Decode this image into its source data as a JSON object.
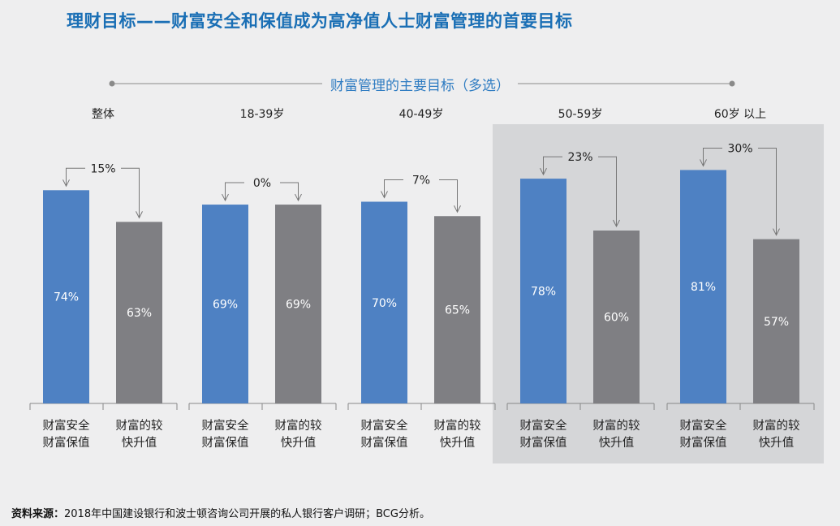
{
  "title": "理财目标——财富安全和保值成为高净值人士财富管理的首要目标",
  "source_label": "资料来源：",
  "source_text": "2018年中国建设银行和波士顿咨询公司开展的私人银行客户调研；BCG分析。",
  "colors": {
    "safe": "#4e81c3",
    "growth": "#7f7f83",
    "highlight": "#d5d6d8",
    "title": "#1a6fb5"
  },
  "chart_data": {
    "type": "bar",
    "title": "财富管理的主要目标（多选）",
    "unit": "%",
    "category_labels": [
      [
        "财富安全",
        "财富保值"
      ],
      [
        "财富的较",
        "快升值"
      ]
    ],
    "groups": [
      "整体",
      "18-39岁",
      "40-49岁",
      "50-59岁",
      "60岁 以上"
    ],
    "series": [
      {
        "values": [
          74,
          69,
          70,
          78,
          81
        ]
      },
      {
        "values": [
          63,
          69,
          65,
          60,
          57
        ]
      }
    ],
    "differences": [
      "15%",
      "0%",
      "7%",
      "23%",
      "30%"
    ],
    "highlighted_groups": [
      "50-59岁",
      "60岁 以上"
    ]
  }
}
